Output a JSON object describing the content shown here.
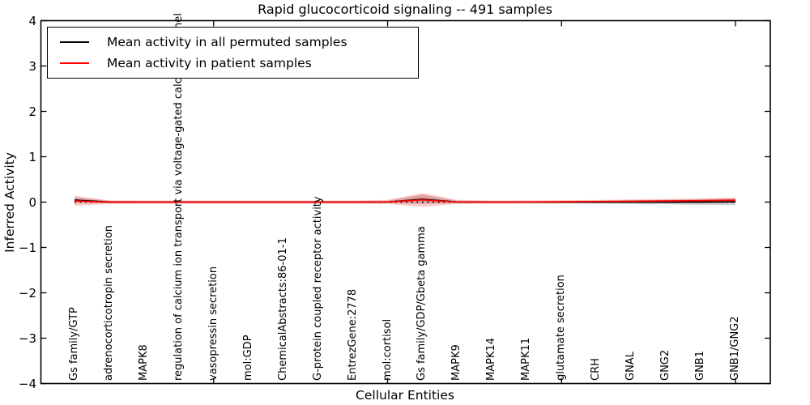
{
  "figure": {
    "title": "Rapid glucocorticoid signaling -- 491 samples",
    "xlabel": "Cellular Entities",
    "ylabel": "Inferred Activity"
  },
  "legend": {
    "items": [
      {
        "label": "Mean activity in all permuted samples",
        "color": "#000000"
      },
      {
        "label": "Mean activity in patient samples",
        "color": "#ff0000"
      }
    ]
  },
  "chart_data": {
    "type": "line",
    "title": "Rapid glucocorticoid signaling -- 491 samples",
    "xlabel": "Cellular Entities",
    "ylabel": "Inferred Activity",
    "ylim": [
      -4,
      4
    ],
    "yticks": [
      4,
      3,
      2,
      1,
      0,
      -1,
      -2,
      -3,
      -4
    ],
    "grid": false,
    "legend_position": "upper left",
    "zero_reference_line": {
      "style": "dotted",
      "color": "#000000",
      "y": 0
    },
    "categories": [
      "Gs family/GTP",
      "adrenocorticotropin secretion",
      "MAPK8",
      "regulation of calcium ion transport via voltage-gated calcium channel",
      "vasopressin secretion",
      "mol:GDP",
      "ChemicalAbstracts:86-01-1",
      "G-protein coupled receptor activity",
      "EntrezGene:2778",
      "mol:cortisol",
      "Gs family/GDP/Gbeta gamma",
      "MAPK9",
      "MAPK14",
      "MAPK11",
      "glutamate secretion",
      "CRH",
      "GNAL",
      "GNG2",
      "GNB1",
      "GNB1/GNG2"
    ],
    "xtick_marker_indices": [
      4,
      9,
      14,
      19
    ],
    "series": [
      {
        "name": "Mean activity in all permuted samples",
        "color": "#000000",
        "style": "solid",
        "values": [
          0.045,
          0.002,
          0.0,
          0.0,
          0.0,
          0.0,
          0.0,
          0.0,
          0.0,
          0.004,
          0.062,
          0.004,
          0.0,
          0.0,
          0.0,
          0.0,
          0.0,
          0.0,
          0.0,
          0.008
        ],
        "band_halfwidth": [
          0.06,
          0.025,
          0.02,
          0.02,
          0.02,
          0.02,
          0.02,
          0.02,
          0.02,
          0.025,
          0.1,
          0.025,
          0.02,
          0.02,
          0.025,
          0.03,
          0.04,
          0.05,
          0.06,
          0.07
        ],
        "band_color": "rgba(100,100,100,0.30)"
      },
      {
        "name": "Mean activity in patient samples",
        "color": "#ff0000",
        "style": "solid",
        "values": [
          0.027,
          0.0,
          0.0,
          0.0,
          0.0,
          0.0,
          0.0,
          0.0,
          0.0,
          0.004,
          0.048,
          0.004,
          0.0,
          0.002,
          0.008,
          0.012,
          0.018,
          0.025,
          0.032,
          0.042
        ],
        "band_halfwidth": [
          0.11,
          0.04,
          0.035,
          0.035,
          0.035,
          0.035,
          0.035,
          0.035,
          0.035,
          0.045,
          0.15,
          0.045,
          0.035,
          0.035,
          0.035,
          0.035,
          0.04,
          0.045,
          0.05,
          0.055
        ],
        "band_color": "rgba(255,0,0,0.22)"
      }
    ]
  }
}
